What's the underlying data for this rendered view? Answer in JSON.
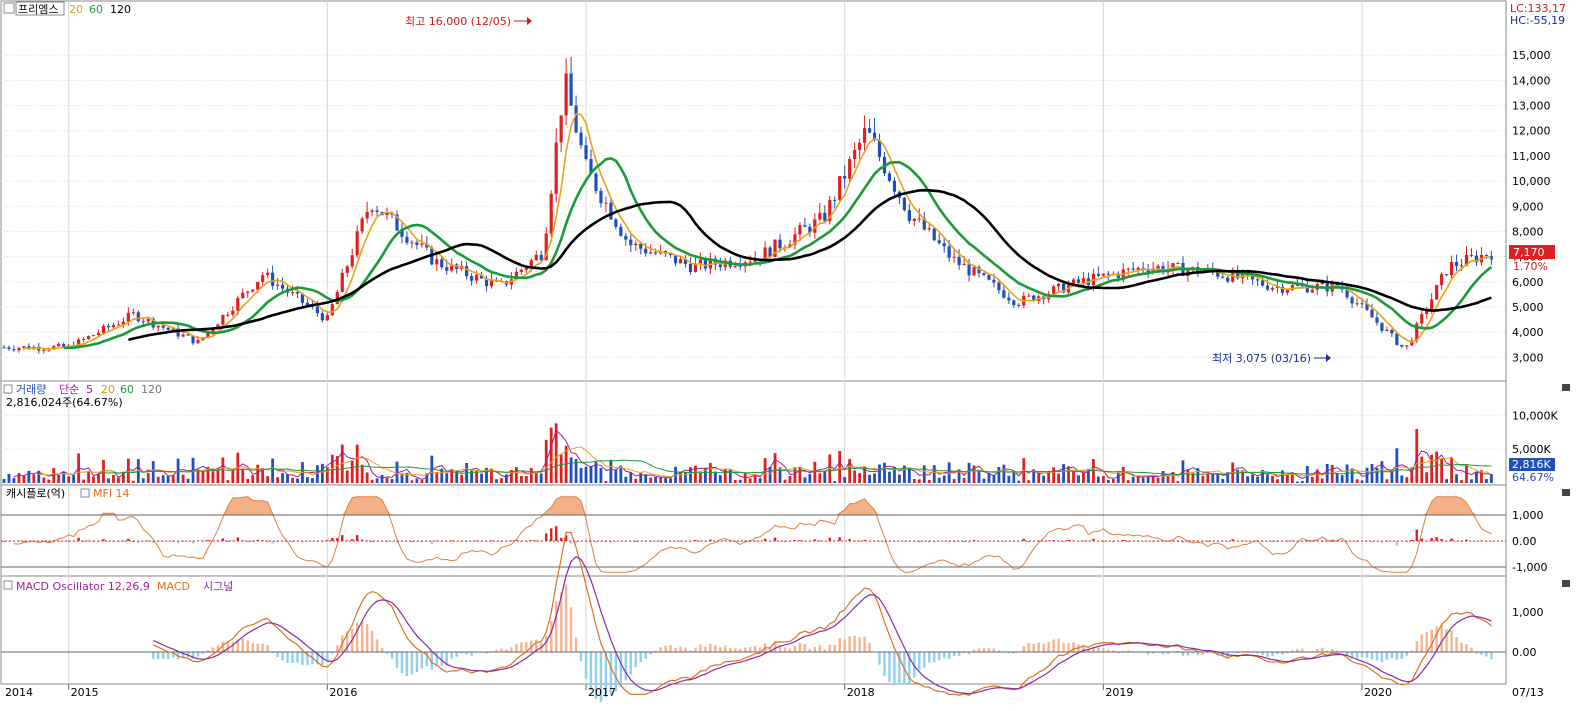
{
  "header": {
    "stock_name": "프리엠스",
    "ma_labels": [
      {
        "text": "20",
        "color": "#d4a017"
      },
      {
        "text": "60",
        "color": "#1a9a3a"
      },
      {
        "text": "120",
        "color": "#000000"
      }
    ],
    "lc_text": "LC:133,17",
    "hc_text": "HC:-55,19"
  },
  "price": {
    "current_label": "7,170",
    "change_label": "1.70%",
    "high_annotation": "최고 16,000 (12/05)",
    "low_annotation": "최저 3,075 (03/16)",
    "y_ticks": [
      "3,000",
      "4,000",
      "5,000",
      "6,000",
      "7,000",
      "8,000",
      "9,000",
      "10,000",
      "11,000",
      "12,000",
      "13,000",
      "14,000",
      "15,000"
    ]
  },
  "volume": {
    "title": "거래량",
    "ma_title": "단순",
    "ma_labels": [
      {
        "text": "5",
        "color": "#a020a0"
      },
      {
        "text": "20",
        "color": "#d4a017"
      },
      {
        "text": "60",
        "color": "#1a9a3a"
      },
      {
        "text": "120",
        "color": "#777777"
      }
    ],
    "current_text": "2,816,024주(64.67%)",
    "current_label": "2,816K",
    "pct_label": "64.67%",
    "y_ticks": [
      "5,000K",
      "10,000K"
    ]
  },
  "money_flow": {
    "title": "캐시플로(억)",
    "indicator": "MFI 14",
    "y_ticks": [
      "-1,000",
      "0.00",
      "1,000"
    ]
  },
  "macd": {
    "title": "MACD Oscillator 12,26,9",
    "macd_label": "MACD",
    "signal_label": "시그널",
    "y_ticks": [
      "0.00",
      "1,000"
    ]
  },
  "x_axis": {
    "labels": [
      "2014",
      "2015",
      "2016",
      "2017",
      "2018",
      "2019",
      "2020",
      "07/13"
    ]
  },
  "colors": {
    "up": "#e02020",
    "down": "#1f4fbf",
    "ma20": "#e8a31a",
    "ma60": "#1a9a3a",
    "ma120": "#000000",
    "grid": "#d8d8d8",
    "mfi": "#e08040",
    "macd": "#e07020",
    "signal": "#8a2aa0",
    "osc_up": "#f7b38e",
    "osc_down": "#8fd0ee"
  },
  "chart_data": {
    "type": "line",
    "series": [
      {
        "name": "프리엠스",
        "x": [
          "2014-10",
          "2015-01",
          "2015-04",
          "2015-07",
          "2015-10",
          "2016-01",
          "2016-03",
          "2016-06",
          "2016-09",
          "2016-11",
          "2016-12",
          "2017-01",
          "2017-03",
          "2017-06",
          "2017-09",
          "2017-12",
          "2018-02",
          "2018-04",
          "2018-06",
          "2018-09",
          "2018-12",
          "2019-03",
          "2019-06",
          "2019-09",
          "2019-12",
          "2020-03",
          "2020-05",
          "2020-07"
        ],
        "values": [
          3400,
          3400,
          4700,
          3600,
          6300,
          4500,
          9200,
          6800,
          5800,
          7200,
          14000,
          10500,
          7500,
          6600,
          7000,
          8500,
          12000,
          8700,
          6900,
          5200,
          6000,
          6600,
          6400,
          5800,
          5800,
          3300,
          6600,
          7170
        ]
      }
    ]
  }
}
